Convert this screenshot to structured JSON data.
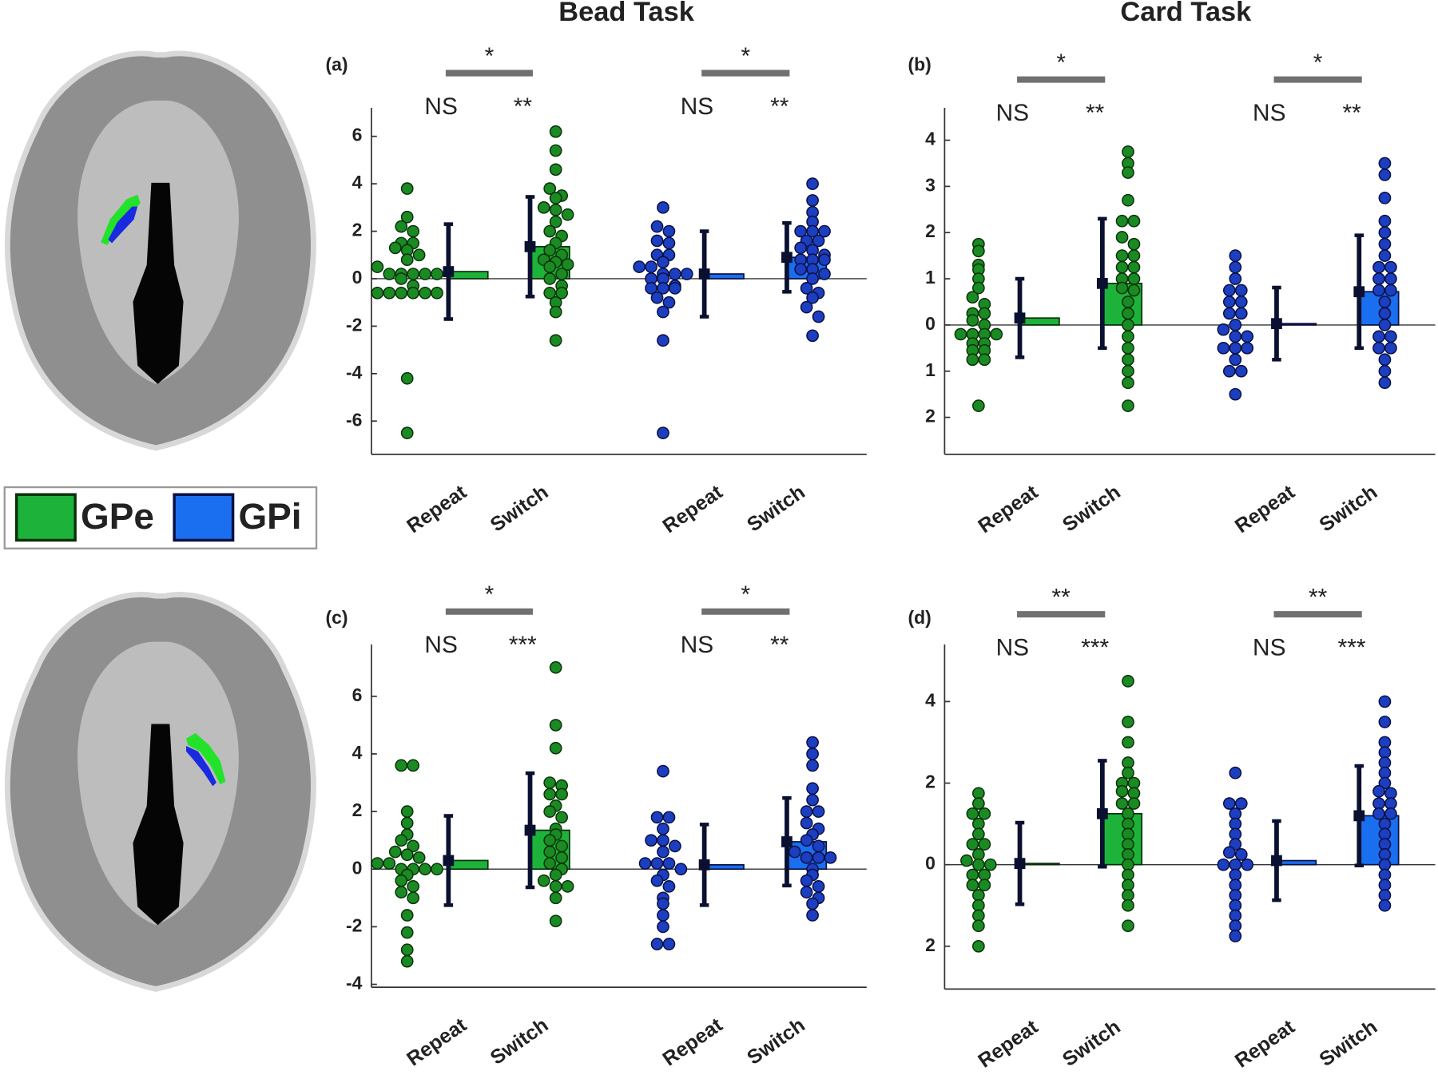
{
  "column_titles": [
    "Bead Task",
    "Card Task"
  ],
  "chart_data": [
    {
      "type": "bar_scatter",
      "panel_label": "(a)",
      "categories": [
        "Repeat",
        "Switch"
      ],
      "ylim": [
        -7.4,
        7.2
      ],
      "yticks": [
        -6,
        -4,
        -2,
        0,
        2,
        4,
        6
      ],
      "series": [
        {
          "name": "GPe",
          "color": "#1db33a",
          "point_color": "#1a8a22",
          "values": [
            0.3,
            1.35
          ],
          "errors": [
            2.0,
            2.1
          ],
          "points": [
            [
              3.8,
              2.6,
              2.2,
              2.0,
              1.5,
              1.5,
              1.3,
              1.2,
              1.0,
              0.8,
              0.5,
              0.2,
              0.2,
              0.2,
              0.2,
              0.2,
              0.0,
              -0.3,
              -0.6,
              -0.6,
              -0.6,
              -0.6,
              -0.6,
              -0.6,
              -4.2,
              -6.5
            ],
            [
              6.2,
              5.4,
              4.6,
              3.8,
              3.5,
              3.4,
              3.0,
              2.9,
              2.7,
              2.4,
              2.0,
              1.8,
              1.5,
              1.2,
              1.0,
              0.8,
              0.7,
              0.6,
              0.5,
              0.2,
              0.0,
              -0.3,
              -0.6,
              -0.6,
              -1.0,
              -1.4,
              -2.6
            ]
          ],
          "significance": [
            "NS",
            "**"
          ],
          "contrast": "*"
        },
        {
          "name": "GPi",
          "color": "#1a6ef0",
          "point_color": "#1c3ec0",
          "values": [
            0.2,
            0.9
          ],
          "errors": [
            1.8,
            1.45
          ],
          "points": [
            [
              3.0,
              2.2,
              2.0,
              1.6,
              1.5,
              1.0,
              1.0,
              0.7,
              0.5,
              0.5,
              0.2,
              0.2,
              0.2,
              0.0,
              0.0,
              -0.3,
              -0.4,
              -0.4,
              -0.4,
              -0.8,
              -1.0,
              -1.4,
              -2.6,
              -6.5
            ],
            [
              4.0,
              3.3,
              2.8,
              2.4,
              2.0,
              2.0,
              2.0,
              1.6,
              1.6,
              1.3,
              1.2,
              1.0,
              0.8,
              0.8,
              0.8,
              0.4,
              0.4,
              0.2,
              0.0,
              -0.4,
              -0.6,
              -0.8,
              -1.2,
              -1.6,
              -2.4
            ]
          ],
          "significance": [
            "NS",
            "**"
          ],
          "contrast": "*"
        }
      ]
    },
    {
      "type": "bar_scatter",
      "panel_label": "(b)",
      "categories": [
        "Repeat",
        "Switch"
      ],
      "ylim": [
        -2.8,
        4.7
      ],
      "yticks": [
        {
          "value": -2,
          "label": "2"
        },
        {
          "value": -1,
          "label": "1"
        },
        0,
        1,
        2,
        3,
        4
      ],
      "series": [
        {
          "name": "GPe",
          "color": "#1db33a",
          "point_color": "#1a8a22",
          "values": [
            0.15,
            0.9
          ],
          "errors": [
            0.85,
            1.4
          ],
          "points": [
            [
              1.75,
              1.6,
              1.3,
              1.2,
              1.0,
              0.8,
              0.6,
              0.45,
              0.25,
              0.25,
              0.1,
              0.0,
              -0.2,
              -0.2,
              -0.2,
              -0.2,
              -0.4,
              -0.4,
              -0.55,
              -0.55,
              -0.75,
              -0.75,
              -1.75
            ],
            [
              3.75,
              3.5,
              3.3,
              2.7,
              2.25,
              2.25,
              1.9,
              1.75,
              1.5,
              1.5,
              1.25,
              1.25,
              1.0,
              1.0,
              0.8,
              0.75,
              0.5,
              0.25,
              0.0,
              -0.25,
              -0.5,
              -0.75,
              -1.0,
              -1.25,
              -1.75
            ]
          ],
          "significance": [
            "NS",
            "**"
          ],
          "contrast": "*"
        },
        {
          "name": "GPi",
          "color": "#1a6ef0",
          "point_color": "#1c3ec0",
          "values": [
            0.03,
            0.72
          ],
          "errors": [
            0.78,
            1.22
          ],
          "points": [
            [
              1.5,
              1.25,
              1.0,
              0.75,
              0.75,
              0.5,
              0.5,
              0.25,
              0.25,
              0.0,
              -0.1,
              -0.25,
              -0.25,
              -0.5,
              -0.5,
              -0.5,
              -0.75,
              -1.0,
              -1.0,
              -1.5
            ],
            [
              3.5,
              3.25,
              2.75,
              2.25,
              2.0,
              1.75,
              1.5,
              1.25,
              1.25,
              1.0,
              1.0,
              0.75,
              0.75,
              0.5,
              0.25,
              0.0,
              -0.25,
              -0.25,
              -0.5,
              -0.5,
              -0.75,
              -1.0,
              -1.25
            ]
          ],
          "significance": [
            "NS",
            "**"
          ],
          "contrast": "*"
        }
      ]
    },
    {
      "type": "bar_scatter",
      "panel_label": "(c)",
      "categories": [
        "Repeat",
        "Switch"
      ],
      "ylim": [
        -4.1,
        7.8
      ],
      "yticks": [
        -4,
        -2,
        0,
        2,
        4,
        6
      ],
      "series": [
        {
          "name": "GPe",
          "color": "#1db33a",
          "point_color": "#1a8a22",
          "values": [
            0.3,
            1.35
          ],
          "errors": [
            1.55,
            1.98
          ],
          "points": [
            [
              3.6,
              3.6,
              2.0,
              1.6,
              1.2,
              1.0,
              0.8,
              0.6,
              0.5,
              0.4,
              0.2,
              0.2,
              0.0,
              0.0,
              0.0,
              0.0,
              -0.2,
              -0.4,
              -0.6,
              -0.8,
              -1.0,
              -1.6,
              -2.2,
              -2.8,
              -3.2
            ],
            [
              7.0,
              5.0,
              4.2,
              3.0,
              2.9,
              2.6,
              2.6,
              2.2,
              2.0,
              1.8,
              1.4,
              1.2,
              1.0,
              0.8,
              0.6,
              0.4,
              0.2,
              0.0,
              -0.2,
              -0.4,
              -0.6,
              -0.6,
              -1.0,
              -1.8
            ]
          ],
          "significance": [
            "NS",
            "***"
          ],
          "contrast": "*"
        },
        {
          "name": "GPi",
          "color": "#1a6ef0",
          "point_color": "#1c3ec0",
          "values": [
            0.15,
            0.95
          ],
          "errors": [
            1.4,
            1.52
          ],
          "points": [
            [
              3.4,
              1.8,
              1.8,
              1.4,
              1.0,
              1.0,
              0.8,
              0.6,
              0.2,
              0.2,
              0.2,
              0.0,
              -0.2,
              -0.4,
              -0.6,
              -1.0,
              -1.2,
              -1.6,
              -2.0,
              -2.6,
              -2.6
            ],
            [
              4.4,
              4.0,
              3.6,
              2.8,
              2.4,
              2.0,
              2.0,
              1.6,
              1.4,
              1.2,
              1.0,
              0.8,
              0.6,
              0.4,
              0.4,
              0.4,
              0.0,
              -0.2,
              -0.4,
              -0.6,
              -0.8,
              -1.0,
              -1.2,
              -1.6
            ]
          ],
          "significance": [
            "NS",
            "**"
          ],
          "contrast": "*"
        }
      ]
    },
    {
      "type": "bar_scatter",
      "panel_label": "(d)",
      "categories": [
        "Repeat",
        "Switch"
      ],
      "ylim": [
        -3.05,
        5.4
      ],
      "yticks": [
        {
          "value": -2,
          "label": "2"
        },
        0,
        2,
        4
      ],
      "series": [
        {
          "name": "GPe",
          "color": "#1db33a",
          "point_color": "#1a8a22",
          "values": [
            0.03,
            1.25
          ],
          "errors": [
            1.0,
            1.3
          ],
          "points": [
            [
              1.75,
              1.5,
              1.25,
              1.25,
              1.0,
              0.75,
              0.5,
              0.5,
              0.25,
              0.1,
              0.0,
              0.0,
              -0.25,
              -0.25,
              -0.5,
              -0.5,
              -0.75,
              -1.0,
              -1.25,
              -1.5,
              -2.0
            ],
            [
              4.5,
              3.5,
              3.0,
              2.5,
              2.25,
              2.0,
              2.0,
              1.8,
              1.75,
              1.5,
              1.5,
              1.25,
              1.0,
              0.75,
              0.5,
              0.25,
              0.0,
              -0.25,
              -0.5,
              -0.75,
              -1.0,
              -1.5
            ]
          ],
          "significance": [
            "NS",
            "***"
          ],
          "contrast": "**"
        },
        {
          "name": "GPi",
          "color": "#1a6ef0",
          "point_color": "#1c3ec0",
          "values": [
            0.1,
            1.2
          ],
          "errors": [
            0.97,
            1.22
          ],
          "points": [
            [
              2.25,
              1.5,
              1.5,
              1.25,
              1.0,
              0.75,
              0.5,
              0.3,
              0.25,
              0.0,
              0.0,
              0.0,
              -0.25,
              -0.5,
              -0.75,
              -1.0,
              -1.25,
              -1.5,
              -1.75
            ],
            [
              4.0,
              3.5,
              3.0,
              2.75,
              2.5,
              2.25,
              2.0,
              1.8,
              1.75,
              1.5,
              1.5,
              1.25,
              1.25,
              1.0,
              0.75,
              0.5,
              0.25,
              0.0,
              -0.25,
              -0.5,
              -0.75,
              -1.0
            ]
          ],
          "significance": [
            "NS",
            "***"
          ],
          "contrast": "**"
        }
      ]
    }
  ]
}
